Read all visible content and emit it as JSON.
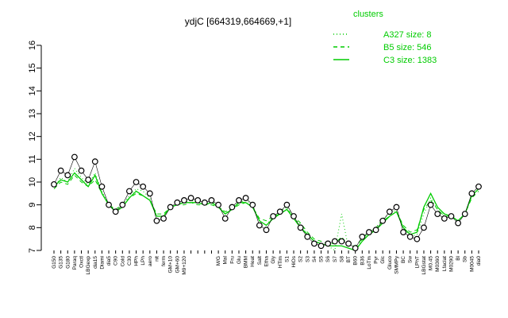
{
  "chart_data": {
    "type": "line",
    "title": "ydjC [664319,664669,+1]",
    "legend_title": "clusters",
    "categories": [
      "G150",
      "G135",
      "G180",
      "Paraq",
      "Oxctl",
      "LBGexp",
      "dia15",
      "Diami",
      "dia5",
      "C90",
      "Cold",
      "C30",
      "HPh",
      "LPh",
      "aero",
      "nit",
      "ferm",
      "GM+10",
      "GM+60",
      "M9+120",
      null,
      null,
      null,
      null,
      "M/G",
      "Mal",
      "Fru",
      "Glu",
      "BMM",
      "Heat",
      "Salt",
      "Etha",
      "Gly",
      "HTim",
      "S1",
      "HiOs",
      "S2",
      "S3",
      "S4",
      "S5",
      "S6",
      "S7",
      "S8",
      "BT",
      "B60",
      "B36",
      "LoTm",
      "Pyr",
      "Glc",
      "Gluco",
      "SMMPy",
      "BC",
      "Sw",
      "LPhT",
      "LBGstat",
      "M0.45",
      "M0360",
      "Lfaclat",
      "M0290",
      "Bl",
      "Sb",
      "M0045",
      "dia0"
    ],
    "values": [
      9.9,
      10.5,
      10.3,
      11.1,
      10.5,
      10.1,
      10.9,
      9.8,
      9.0,
      8.7,
      9.0,
      9.6,
      10.0,
      9.8,
      9.5,
      8.3,
      8.4,
      8.9,
      9.1,
      9.2,
      9.3,
      9.2,
      9.1,
      9.2,
      9.0,
      8.4,
      8.9,
      9.2,
      9.3,
      9.0,
      8.1,
      7.9,
      8.5,
      8.7,
      9.0,
      8.5,
      8.0,
      7.6,
      7.3,
      7.2,
      7.3,
      7.4,
      7.4,
      7.3,
      7.1,
      7.6,
      7.8,
      7.9,
      8.3,
      8.7,
      8.9,
      7.8,
      7.6,
      7.5,
      8.0,
      9.0,
      8.6,
      8.4,
      8.5,
      8.2,
      8.6,
      9.5,
      9.8
    ],
    "series": [
      {
        "name": "A327 size: 8",
        "dash": "dotted",
        "color": "#00cc00",
        "values": [
          9.8,
          10.2,
          10.0,
          10.6,
          10.2,
          9.9,
          10.4,
          9.6,
          9.0,
          8.8,
          9.0,
          9.4,
          9.7,
          9.6,
          9.3,
          8.5,
          8.5,
          8.9,
          9.0,
          9.1,
          9.2,
          9.1,
          9.0,
          9.1,
          9.0,
          8.6,
          8.9,
          9.1,
          9.2,
          9.0,
          8.3,
          8.1,
          8.5,
          8.7,
          8.9,
          8.5,
          8.1,
          7.7,
          7.4,
          7.3,
          7.2,
          7.0,
          8.6,
          7.1,
          7.0,
          7.5,
          7.8,
          8.0,
          8.4,
          8.6,
          8.8,
          8.0,
          7.6,
          7.7,
          8.6,
          9.3,
          8.8,
          8.5,
          8.5,
          8.3,
          8.6,
          9.4,
          9.7
        ]
      },
      {
        "name": "B5 size: 546",
        "dash": "dashed",
        "color": "#00cc00",
        "values": [
          9.7,
          10.0,
          9.9,
          10.3,
          10.0,
          9.8,
          10.1,
          9.5,
          9.0,
          8.8,
          9.0,
          9.3,
          9.5,
          9.4,
          9.2,
          8.6,
          8.6,
          8.9,
          9.0,
          9.0,
          9.1,
          9.0,
          9.0,
          9.0,
          8.9,
          8.7,
          8.8,
          9.0,
          9.1,
          8.9,
          8.4,
          8.3,
          8.5,
          8.6,
          8.8,
          8.5,
          8.2,
          7.8,
          7.5,
          7.4,
          7.3,
          7.3,
          7.6,
          7.2,
          7.2,
          7.5,
          7.8,
          8.0,
          8.3,
          8.5,
          8.7,
          8.1,
          7.8,
          7.9,
          8.8,
          9.2,
          8.8,
          8.5,
          8.5,
          8.3,
          8.6,
          9.3,
          9.6
        ]
      },
      {
        "name": "C3 size: 1383",
        "dash": "solid",
        "color": "#00cc00",
        "values": [
          9.8,
          10.1,
          10.0,
          10.4,
          10.1,
          9.8,
          10.3,
          9.5,
          9.0,
          8.7,
          8.9,
          9.3,
          9.6,
          9.4,
          9.2,
          8.5,
          8.5,
          8.9,
          9.0,
          9.1,
          9.1,
          9.1,
          9.0,
          9.1,
          8.9,
          8.6,
          8.8,
          9.1,
          9.1,
          8.9,
          8.3,
          8.1,
          8.4,
          8.6,
          8.8,
          8.4,
          8.0,
          7.7,
          7.4,
          7.3,
          7.2,
          7.2,
          7.2,
          7.1,
          7.0,
          7.4,
          7.7,
          7.9,
          8.2,
          8.5,
          8.7,
          8.0,
          7.7,
          7.8,
          8.9,
          9.5,
          8.9,
          8.6,
          8.5,
          8.3,
          8.6,
          9.4,
          9.7
        ]
      }
    ],
    "ylim": [
      7,
      16
    ],
    "yticks": [
      7,
      8,
      9,
      10,
      11,
      12,
      13,
      14,
      15,
      16
    ],
    "point_color": "#000000"
  }
}
